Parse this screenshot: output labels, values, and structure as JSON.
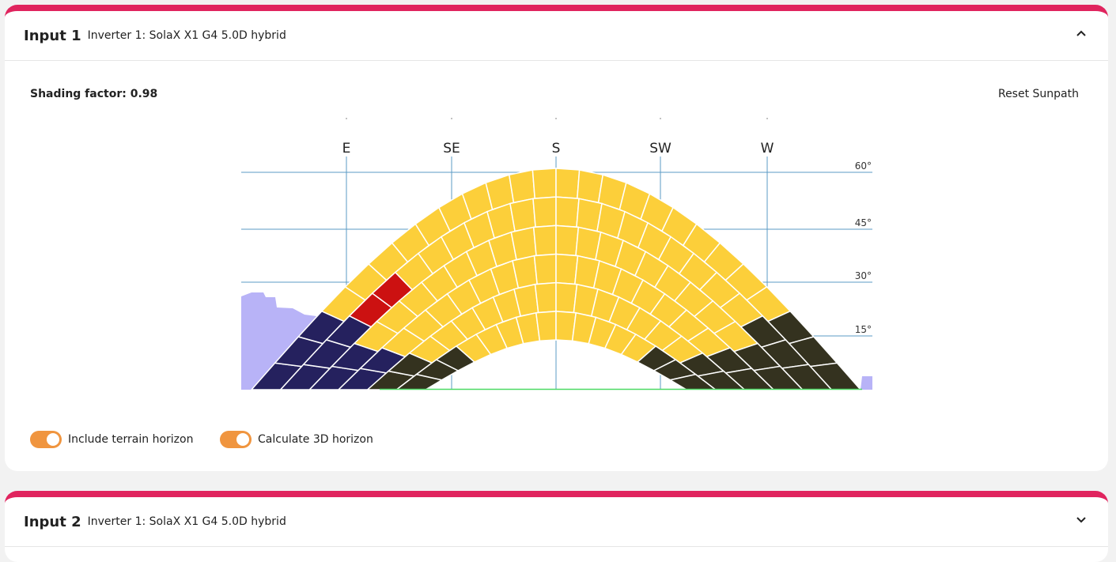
{
  "panels": [
    {
      "title": "Input 1",
      "subtitle": "Inverter 1: SolaX X1 G4 5.0D hybrid",
      "expanded": true
    },
    {
      "title": "Input 2",
      "subtitle": "Inverter 1: SolaX X1 G4 5.0D hybrid",
      "expanded": false
    }
  ],
  "shading_label": "Shading factor: 0.98",
  "reset_button": "Reset Sunpath",
  "sunpath": {
    "directions": [
      "E",
      "SE",
      "S",
      "SW",
      "W"
    ],
    "elevations": [
      "60°",
      "45°",
      "30°",
      "15°"
    ]
  },
  "toggles": [
    {
      "label": "Include terrain horizon",
      "checked": true
    },
    {
      "label": "Calculate 3D horizon",
      "checked": true
    }
  ]
}
